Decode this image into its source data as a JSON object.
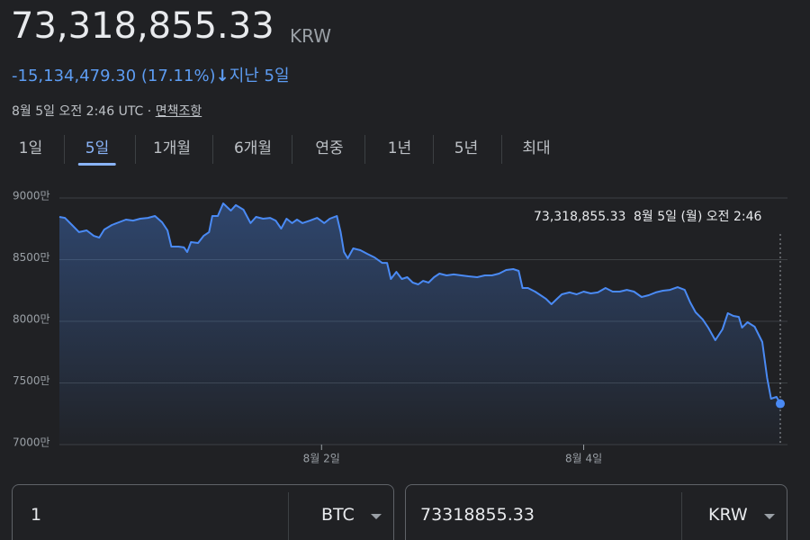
{
  "header": {
    "price": "73,318,855.33",
    "currency": "KRW",
    "change": "-15,134,479.30 (17.11%)",
    "change_period": "지난 5일",
    "timestamp": "8월 5일 오전 2:46 UTC · ",
    "disclaimer": "면책조항"
  },
  "tabs": {
    "items": [
      "1일",
      "5일",
      "1개월",
      "6개월",
      "연중",
      "1년",
      "5년",
      "최대"
    ],
    "active": 1
  },
  "tooltip": {
    "value": "73,318,855.33",
    "date": "8월 5일 (월) 오전 2:46"
  },
  "chart_data": {
    "type": "line",
    "x": [
      0,
      1.0,
      2.3,
      3.6,
      5.0,
      6.3,
      7.3,
      8.2,
      9.6,
      10.9,
      12.2,
      13.5,
      14.8,
      16.2,
      17.5,
      18.8,
      19.8,
      20.5,
      21.8,
      22.8,
      23.4,
      24.1,
      25.4,
      26.4,
      27.4,
      28.0,
      29.0,
      30.0,
      31.4,
      32.3,
      33.7,
      35.0,
      36.0,
      37.3,
      38.6,
      39.6,
      40.6,
      41.6,
      42.6,
      43.5,
      44.5,
      45.9,
      47.2,
      48.5,
      49.5,
      50.8,
      51.5,
      52.1,
      52.8,
      53.8,
      55.1,
      56.4,
      57.7,
      59.1,
      60.0,
      60.7,
      61.7,
      62.7,
      63.7,
      64.7,
      65.7,
      66.6,
      67.6,
      68.6,
      69.6,
      70.9,
      72.2,
      73.6,
      74.9,
      76.5,
      77.9,
      79.2,
      80.5,
      81.8,
      83.1,
      84.1,
      84.8,
      85.8,
      87.1,
      88.1,
      89.1,
      90.1,
      91.1,
      92.0,
      93.4,
      94.7,
      96.0,
      97.3,
      98.6,
      100.0,
      101.3,
      102.6,
      103.9,
      105.2,
      106.6,
      107.9,
      109.2,
      110.5,
      111.8,
      113.2,
      114.5,
      115.5,
      116.5,
      117.8,
      118.8,
      120.1,
      121.4,
      122.4,
      123.4,
      124.4,
      125.0,
      126.0,
      127.3,
      128.7,
      129.6,
      130.3,
      131.3,
      132
    ],
    "series": [
      {
        "color": "#4a8af4",
        "values": [
          8847,
          8839,
          8781,
          8723,
          8737,
          8693,
          8679,
          8744,
          8781,
          8803,
          8825,
          8817,
          8832,
          8839,
          8854,
          8803,
          8737,
          8606,
          8606,
          8599,
          8562,
          8642,
          8635,
          8693,
          8723,
          8854,
          8854,
          8956,
          8898,
          8942,
          8905,
          8796,
          8847,
          8832,
          8839,
          8817,
          8752,
          8832,
          8796,
          8825,
          8796,
          8817,
          8839,
          8796,
          8832,
          8854,
          8723,
          8562,
          8511,
          8591,
          8577,
          8547,
          8518,
          8474,
          8474,
          8343,
          8401,
          8343,
          8358,
          8314,
          8299,
          8328,
          8314,
          8358,
          8387,
          8372,
          8380,
          8372,
          8365,
          8358,
          8372,
          8372,
          8387,
          8416,
          8423,
          8409,
          8270,
          8270,
          8241,
          8212,
          8182,
          8139,
          8182,
          8219,
          8234,
          8219,
          8241,
          8226,
          8234,
          8270,
          8241,
          8241,
          8255,
          8241,
          8197,
          8212,
          8234,
          8248,
          8255,
          8277,
          8255,
          8153,
          8073,
          8015,
          7949,
          7847,
          7934,
          8066,
          8044,
          8036,
          7949,
          7993,
          7956,
          7832,
          7540,
          7372,
          7387,
          7331.885533
        ]
      }
    ],
    "xlim": [
      0,
      132
    ],
    "xticks": [
      {
        "value": 48,
        "label": "8월 2일"
      },
      {
        "value": 96,
        "label": "8월 4일"
      }
    ],
    "ylim": [
      7000,
      9000
    ],
    "yticks": [
      {
        "value": 7000,
        "label": "7000만"
      },
      {
        "value": 7500,
        "label": "7500만"
      },
      {
        "value": 8000,
        "label": "8000만"
      },
      {
        "value": 8500,
        "label": "8500만"
      },
      {
        "value": 9000,
        "label": "9000만"
      }
    ],
    "grid": true
  },
  "converter": {
    "amount": "1",
    "from": "BTC",
    "result": "73318855.33",
    "to": "KRW"
  }
}
